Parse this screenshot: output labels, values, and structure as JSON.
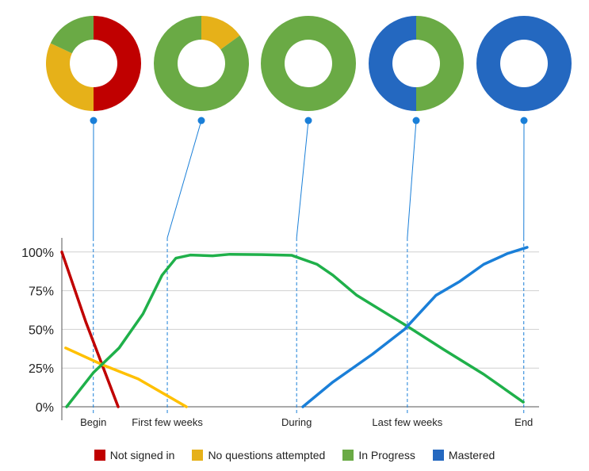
{
  "chart_data": [
    {
      "type": "line",
      "xlim": [
        0,
        100
      ],
      "ylim": [
        0,
        105
      ],
      "xticks": [
        {
          "value": 6.6,
          "label": "Begin"
        },
        {
          "value": 22.1,
          "label": "First few weeks"
        },
        {
          "value": 49.2,
          "label": "During"
        },
        {
          "value": 72.4,
          "label": "Last few weeks"
        },
        {
          "value": 96.8,
          "label": "End"
        }
      ],
      "yticks": [
        {
          "value": 0,
          "label": "0%"
        },
        {
          "value": 25,
          "label": "25%"
        },
        {
          "value": 50,
          "label": "50%"
        },
        {
          "value": 75,
          "label": "75%"
        },
        {
          "value": 100,
          "label": "100%"
        }
      ],
      "grid": true,
      "series": [
        {
          "name": "Not signed in",
          "color": "#c00000",
          "line_color": "#c00000",
          "x": [
            0,
            5,
            11.8
          ],
          "y": [
            100,
            55,
            0
          ]
        },
        {
          "name": "No questions attempted",
          "color": "#e6b119",
          "line_color": "#ffc000",
          "x": [
            0.8,
            8.6,
            16,
            26.1
          ],
          "y": [
            38,
            27,
            18,
            0
          ]
        },
        {
          "name": "In Progress",
          "color": "#6aaa45",
          "line_color": "#1fb04a",
          "x": [
            1,
            6.6,
            12,
            17,
            21,
            23.9,
            26.9,
            31.6,
            35.2,
            41.9,
            48.2,
            53.5,
            56.8,
            61.8,
            72.4,
            80,
            88.4,
            96.7
          ],
          "y": [
            0,
            22,
            38,
            60,
            85,
            96,
            98,
            97.5,
            98.5,
            98.3,
            97.8,
            92,
            85,
            72,
            52,
            37,
            21,
            3
          ]
        },
        {
          "name": "Mastered",
          "color": "#2468c0",
          "line_color": "#1a7fd8",
          "x": [
            50.5,
            56.8,
            65.1,
            71.8,
            78.4,
            83.4,
            88.4,
            93.4,
            97.5
          ],
          "y": [
            0,
            16,
            34,
            50,
            72,
            81,
            92,
            99,
            103
          ]
        }
      ]
    },
    {
      "type": "donut",
      "values": [
        50,
        32,
        18,
        0
      ]
    },
    {
      "type": "donut",
      "values": [
        0,
        15,
        85,
        0
      ]
    },
    {
      "type": "donut",
      "values": [
        0,
        0,
        100,
        0
      ]
    },
    {
      "type": "donut",
      "values": [
        0,
        0,
        50,
        50
      ]
    },
    {
      "type": "donut",
      "values": [
        0,
        0,
        0,
        100
      ]
    }
  ]
}
